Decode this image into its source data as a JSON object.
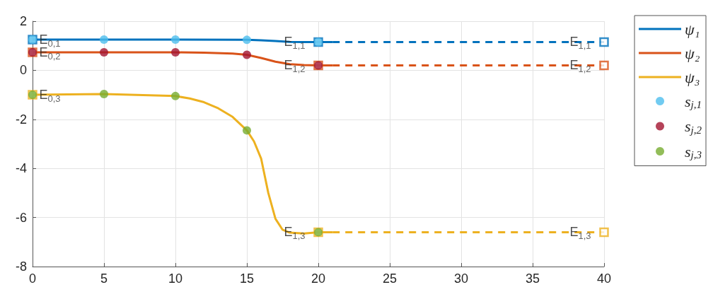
{
  "chart_data": {
    "type": "line",
    "xlim": [
      0,
      40
    ],
    "ylim": [
      -8,
      2
    ],
    "xticks": [
      0,
      5,
      10,
      15,
      20,
      25,
      30,
      35,
      40
    ],
    "yticks": [
      -8,
      -6,
      -4,
      -2,
      0,
      2
    ],
    "grid": true,
    "legend": "right",
    "series": [
      {
        "name": "ψ₁",
        "color": "#0072bd",
        "marker": "none",
        "line_style": "solid",
        "x": [
          0,
          5,
          10,
          15,
          16,
          17,
          18,
          19,
          20,
          21
        ],
        "values": [
          1.25,
          1.25,
          1.25,
          1.24,
          1.22,
          1.19,
          1.16,
          1.15,
          1.15,
          1.15
        ]
      },
      {
        "name": "ψ₂",
        "color": "#d95319",
        "marker": "none",
        "line_style": "solid",
        "x": [
          0,
          5,
          10,
          12,
          14,
          15,
          16,
          17,
          18,
          19,
          20,
          21
        ],
        "values": [
          0.73,
          0.73,
          0.73,
          0.72,
          0.68,
          0.63,
          0.5,
          0.35,
          0.25,
          0.21,
          0.2,
          0.2
        ]
      },
      {
        "name": "ψ₃",
        "color": "#edb120",
        "marker": "none",
        "line_style": "solid",
        "x": [
          0,
          5,
          10,
          11,
          12,
          13,
          14,
          15,
          15.5,
          16,
          16.5,
          17,
          17.5,
          18,
          19,
          20,
          21
        ],
        "values": [
          -1.0,
          -0.97,
          -1.05,
          -1.15,
          -1.3,
          -1.55,
          -1.9,
          -2.45,
          -2.9,
          -3.6,
          -5.0,
          -6.05,
          -6.5,
          -6.62,
          -6.65,
          -6.6,
          -6.6
        ]
      },
      {
        "color": "#0072bd",
        "marker": "none",
        "line_style": "dashed",
        "x": [
          21,
          40
        ],
        "values": [
          1.15,
          1.15
        ]
      },
      {
        "color": "#d95319",
        "marker": "none",
        "line_style": "dashed",
        "x": [
          21,
          40
        ],
        "values": [
          0.2,
          0.2
        ]
      },
      {
        "color": "#edb120",
        "marker": "none",
        "line_style": "dashed",
        "x": [
          21,
          40
        ],
        "values": [
          -6.6,
          -6.6
        ]
      },
      {
        "color": "#0072bd",
        "type": "scatter",
        "marker": "square",
        "x": [
          0,
          20,
          40
        ],
        "values": [
          1.25,
          1.15,
          1.15
        ]
      },
      {
        "color": "#d95319",
        "type": "scatter",
        "marker": "square",
        "x": [
          0,
          20,
          40
        ],
        "values": [
          0.73,
          0.2,
          0.2
        ]
      },
      {
        "color": "#edb120",
        "type": "scatter",
        "marker": "square",
        "x": [
          0,
          20,
          40
        ],
        "values": [
          -1.0,
          -6.6,
          -6.6
        ]
      },
      {
        "name": "s$_{j,1}$",
        "color": "#4dbeee",
        "type": "scatter",
        "marker": "circle",
        "x": [
          0,
          5,
          10,
          15,
          20
        ],
        "values": [
          1.25,
          1.25,
          1.25,
          1.24,
          1.15
        ]
      },
      {
        "name": "s$_{j,2}$",
        "color": "#a2142f",
        "type": "scatter",
        "marker": "circle",
        "x": [
          0,
          5,
          10,
          15,
          20
        ],
        "values": [
          0.73,
          0.73,
          0.73,
          0.63,
          0.2
        ]
      },
      {
        "name": "s$_{j,3}$",
        "color": "#77ac30",
        "type": "scatter",
        "marker": "circle",
        "x": [
          0,
          5,
          10,
          15,
          20
        ],
        "values": [
          -1.0,
          -0.97,
          -1.05,
          -2.45,
          -6.6
        ]
      }
    ],
    "annotations": [
      {
        "text": "E$_{0,1}$",
        "x": 0,
        "y": 1.25
      },
      {
        "text": "E$_{0,2}$",
        "x": 0,
        "y": 0.73
      },
      {
        "text": "E$_{0,3}$",
        "x": 0,
        "y": -1.0
      },
      {
        "text": "E$_{1,1}$",
        "x": 20,
        "y": 1.15
      },
      {
        "text": "E$_{1,2}$",
        "x": 20,
        "y": 0.2
      },
      {
        "text": "E$_{1,3}$",
        "x": 20,
        "y": -6.6
      },
      {
        "text": "E$_{1,1}$",
        "x": 40,
        "y": 1.15
      },
      {
        "text": "E$_{1,2}$",
        "x": 40,
        "y": 0.2
      },
      {
        "text": "E$_{1,3}$",
        "x": 40,
        "y": -6.6
      }
    ]
  }
}
